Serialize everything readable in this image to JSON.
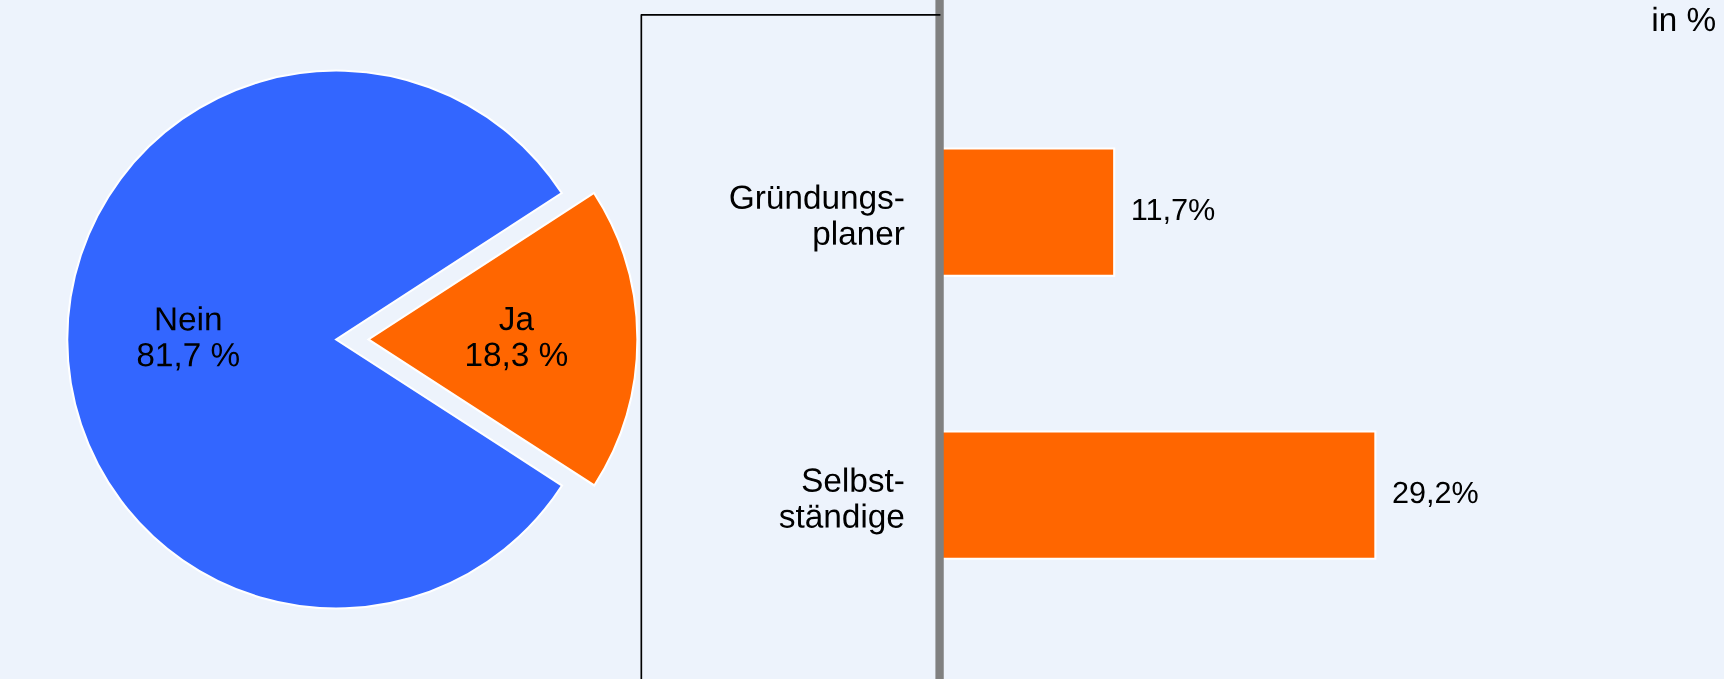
{
  "chart_data": [
    {
      "type": "pie",
      "categories": [
        "Nein",
        "Ja"
      ],
      "values": [
        81.7,
        18.3
      ],
      "colors": [
        "#3366ff",
        "#ff6600"
      ],
      "value_labels": [
        "81,7 %",
        "18,3 %"
      ],
      "legend": false
    },
    {
      "type": "bar",
      "orientation": "horizontal",
      "categories": [
        "Gründungs-\nplaner",
        "Selbst-\nständige"
      ],
      "values": [
        11.7,
        29.2
      ],
      "color": "#ff6600",
      "value_labels": [
        "11,7%",
        "29,2%"
      ],
      "annotations": [
        "in %"
      ],
      "tick_labels": "y",
      "grid": false,
      "legend": false
    }
  ]
}
